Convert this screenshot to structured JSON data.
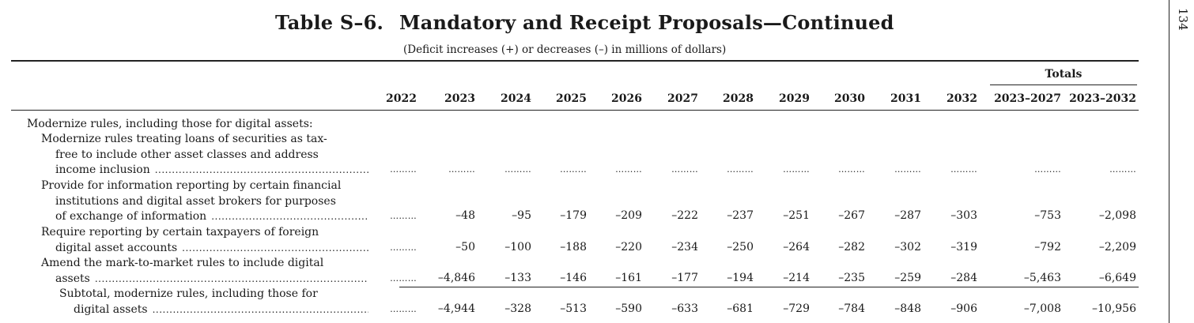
{
  "page": {
    "table_number": "Table S–6.",
    "title": "Mandatory and Receipt Proposals—Continued",
    "subtitle": "(Deficit increases (+) or decreases (–) in millions of dollars)",
    "page_number": "134"
  },
  "header": {
    "totals_label": "Totals",
    "years": [
      "2022",
      "2023",
      "2024",
      "2025",
      "2026",
      "2027",
      "2028",
      "2029",
      "2030",
      "2031",
      "2032",
      "2023–2027",
      "2023–2032"
    ]
  },
  "section_heading": "Modernize rules, including those for digital assets:",
  "rows": [
    {
      "lines": [
        "Modernize rules treating loans of securities as tax-",
        "free to include other asset classes and address",
        "income inclusion"
      ],
      "values": [
        "………",
        "………",
        "………",
        "………",
        "………",
        "………",
        "………",
        "………",
        "………",
        "………",
        "………",
        "………",
        "………"
      ]
    },
    {
      "lines": [
        "Provide for information reporting by certain financial",
        "institutions and digital asset brokers for purposes",
        "of exchange of information"
      ],
      "values": [
        "………",
        "–48",
        "–95",
        "–179",
        "–209",
        "–222",
        "–237",
        "–251",
        "–267",
        "–287",
        "–303",
        "–753",
        "–2,098"
      ]
    },
    {
      "lines": [
        "Require reporting by certain taxpayers of foreign",
        "digital asset accounts"
      ],
      "values": [
        "………",
        "–50",
        "–100",
        "–188",
        "–220",
        "–234",
        "–250",
        "–264",
        "–282",
        "–302",
        "–319",
        "–792",
        "–2,209"
      ]
    },
    {
      "lines": [
        "Amend the mark-to-market rules to include digital",
        "assets"
      ],
      "values": [
        "………",
        "–4,846",
        "–133",
        "–146",
        "–161",
        "–177",
        "–194",
        "–214",
        "–235",
        "–259",
        "–284",
        "–5,463",
        "–6,649"
      ]
    },
    {
      "lines": [
        "Subtotal, modernize rules, including those for",
        "digital assets"
      ],
      "values": [
        "………",
        "–4,944",
        "–328",
        "–513",
        "–590",
        "–633",
        "–681",
        "–729",
        "–784",
        "–848",
        "–906",
        "–7,008",
        "–10,956"
      ]
    }
  ]
}
